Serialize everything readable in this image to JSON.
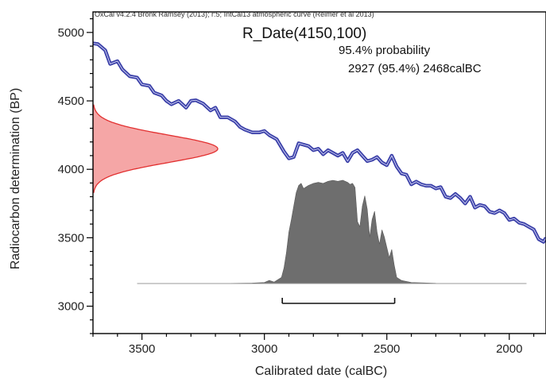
{
  "header_text": "OxCal v4.2.4 Bronk Ramsey (2013); r:5; IntCal13 atmospheric curve (Reimer et al 2013)",
  "title": "R_Date(4150,100)",
  "probability_heading": "95.4% probability",
  "probability_range": "2927 (95.4%) 2468calBC",
  "colors": {
    "curve": "#3a3fa8",
    "radiocarbon_fill": "#f5a6a6",
    "radiocarbon_stroke": "#e23030",
    "calibrated_fill": "#6e6e6e",
    "range_bar": "#111111",
    "frame": "#000000"
  },
  "chart_data": {
    "type": "area",
    "xlabel": "Calibrated date (calBC)",
    "ylabel": "Radiocarbon determination (BP)",
    "xlim": [
      3700,
      1850
    ],
    "ylim": [
      2800,
      5150
    ],
    "x_reversed": true,
    "x_ticks": [
      3500,
      3000,
      2500,
      2000
    ],
    "y_ticks": [
      3000,
      3500,
      4000,
      4500,
      5000
    ],
    "calibration_curve": {
      "x": [
        3700,
        3680,
        3650,
        3630,
        3600,
        3580,
        3550,
        3520,
        3500,
        3470,
        3450,
        3420,
        3400,
        3380,
        3350,
        3320,
        3300,
        3280,
        3250,
        3220,
        3200,
        3180,
        3150,
        3120,
        3100,
        3080,
        3050,
        3020,
        3000,
        2980,
        2950,
        2920,
        2900,
        2880,
        2860,
        2840,
        2820,
        2800,
        2780,
        2760,
        2740,
        2720,
        2700,
        2680,
        2660,
        2640,
        2620,
        2600,
        2580,
        2560,
        2540,
        2520,
        2500,
        2480,
        2460,
        2440,
        2420,
        2400,
        2380,
        2360,
        2340,
        2320,
        2300,
        2280,
        2260,
        2240,
        2220,
        2200,
        2180,
        2160,
        2140,
        2120,
        2100,
        2080,
        2060,
        2040,
        2020,
        2000,
        1980,
        1960,
        1940,
        1920,
        1900,
        1880,
        1860,
        1850
      ],
      "y": [
        4920,
        4915,
        4870,
        4770,
        4790,
        4730,
        4680,
        4670,
        4620,
        4610,
        4560,
        4540,
        4500,
        4475,
        4500,
        4450,
        4500,
        4505,
        4480,
        4430,
        4450,
        4380,
        4380,
        4350,
        4310,
        4290,
        4270,
        4270,
        4280,
        4250,
        4220,
        4130,
        4080,
        4090,
        4190,
        4180,
        4170,
        4140,
        4150,
        4110,
        4140,
        4120,
        4100,
        4120,
        4060,
        4120,
        4140,
        4100,
        4060,
        4070,
        4090,
        4050,
        4030,
        4100,
        4020,
        3970,
        3960,
        3890,
        3910,
        3890,
        3880,
        3880,
        3860,
        3870,
        3800,
        3790,
        3820,
        3790,
        3750,
        3800,
        3720,
        3740,
        3730,
        3690,
        3680,
        3700,
        3680,
        3630,
        3640,
        3610,
        3600,
        3580,
        3560,
        3490,
        3470,
        3500
      ]
    },
    "radiocarbon_distribution": {
      "mean": 4150,
      "sigma": 100
    },
    "calibrated_distribution": {
      "x": [
        3520,
        3200,
        3050,
        3000,
        2980,
        2960,
        2950,
        2930,
        2920,
        2910,
        2900,
        2890,
        2880,
        2870,
        2860,
        2850,
        2840,
        2820,
        2800,
        2780,
        2760,
        2740,
        2720,
        2700,
        2680,
        2660,
        2650,
        2640,
        2630,
        2620,
        2610,
        2600,
        2590,
        2580,
        2570,
        2560,
        2550,
        2540,
        2530,
        2520,
        2510,
        2500,
        2490,
        2480,
        2470,
        2460,
        2440,
        2400,
        2350,
        2300,
        2200,
        1930
      ],
      "density": [
        0,
        0,
        0.005,
        0.01,
        0.03,
        0.015,
        0.03,
        0.06,
        0.15,
        0.3,
        0.5,
        0.62,
        0.75,
        0.88,
        0.95,
        0.97,
        0.92,
        0.95,
        0.97,
        0.98,
        0.97,
        0.99,
        1.0,
        0.99,
        1.0,
        0.98,
        0.96,
        0.97,
        0.93,
        0.6,
        0.55,
        0.75,
        0.85,
        0.72,
        0.45,
        0.62,
        0.7,
        0.5,
        0.38,
        0.52,
        0.45,
        0.35,
        0.25,
        0.33,
        0.18,
        0.06,
        0.03,
        0.01,
        0.006,
        0.002,
        0,
        0
      ]
    },
    "range_95": [
      2927,
      2468
    ],
    "grid": false,
    "legend": "none"
  }
}
